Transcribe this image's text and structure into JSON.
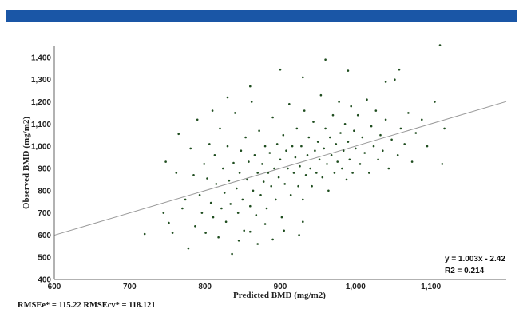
{
  "header_color": "#1a56a6",
  "chart_data": {
    "type": "scatter",
    "xlabel": "Predicted BMD (mg/m2)",
    "ylabel": "Observed BMD (mg/m2)",
    "xlim": [
      600,
      1200
    ],
    "ylim": [
      400,
      1450
    ],
    "x_ticks": [
      {
        "value": 600,
        "label": "600"
      },
      {
        "value": 700,
        "label": "700"
      },
      {
        "value": 800,
        "label": "800"
      },
      {
        "value": 900,
        "label": "900"
      },
      {
        "value": 1000,
        "label": "1,000"
      },
      {
        "value": 1100,
        "label": "1,100"
      }
    ],
    "y_ticks": [
      {
        "value": 400,
        "label": "400"
      },
      {
        "value": 500,
        "label": "500"
      },
      {
        "value": 600,
        "label": "600"
      },
      {
        "value": 700,
        "label": "700"
      },
      {
        "value": 800,
        "label": "800"
      },
      {
        "value": 900,
        "label": "900"
      },
      {
        "value": 1000,
        "label": "1,000"
      },
      {
        "value": 1100,
        "label": "1,100"
      },
      {
        "value": 1200,
        "label": "1,200"
      },
      {
        "value": 1300,
        "label": "1,300"
      },
      {
        "value": 1400,
        "label": "1,400"
      }
    ],
    "point_color": "#1f4d1f",
    "line_color": "#999999",
    "regression": {
      "slope": 1.003,
      "intercept": -2.42,
      "equation": "y = 1.003x - 2.42",
      "r2": "R2 = 0.214"
    },
    "points": [
      [
        720,
        605
      ],
      [
        745,
        700
      ],
      [
        748,
        930
      ],
      [
        752,
        655
      ],
      [
        757,
        610
      ],
      [
        762,
        880
      ],
      [
        765,
        1055
      ],
      [
        770,
        720
      ],
      [
        774,
        760
      ],
      [
        778,
        540
      ],
      [
        781,
        990
      ],
      [
        785,
        870
      ],
      [
        787,
        640
      ],
      [
        790,
        1120
      ],
      [
        793,
        780
      ],
      [
        796,
        700
      ],
      [
        799,
        920
      ],
      [
        801,
        610
      ],
      [
        803,
        855
      ],
      [
        806,
        1010
      ],
      [
        808,
        745
      ],
      [
        811,
        680
      ],
      [
        813,
        960
      ],
      [
        815,
        830
      ],
      [
        818,
        590
      ],
      [
        820,
        1080
      ],
      [
        822,
        720
      ],
      [
        824,
        900
      ],
      [
        826,
        790
      ],
      [
        828,
        660
      ],
      [
        830,
        1000
      ],
      [
        832,
        845
      ],
      [
        834,
        740
      ],
      [
        836,
        515
      ],
      [
        838,
        925
      ],
      [
        840,
        1150
      ],
      [
        842,
        810
      ],
      [
        844,
        700
      ],
      [
        846,
        880
      ],
      [
        848,
        980
      ],
      [
        850,
        760
      ],
      [
        852,
        620
      ],
      [
        854,
        1040
      ],
      [
        856,
        850
      ],
      [
        858,
        930
      ],
      [
        860,
        730
      ],
      [
        862,
        1200
      ],
      [
        864,
        800
      ],
      [
        866,
        960
      ],
      [
        868,
        690
      ],
      [
        870,
        880
      ],
      [
        872,
        1070
      ],
      [
        874,
        780
      ],
      [
        876,
        920
      ],
      [
        878,
        840
      ],
      [
        880,
        1000
      ],
      [
        882,
        720
      ],
      [
        884,
        880
      ],
      [
        886,
        970
      ],
      [
        888,
        820
      ],
      [
        890,
        1130
      ],
      [
        892,
        900
      ],
      [
        894,
        760
      ],
      [
        896,
        1010
      ],
      [
        898,
        860
      ],
      [
        900,
        940
      ],
      [
        902,
        680
      ],
      [
        904,
        1050
      ],
      [
        906,
        830
      ],
      [
        908,
        980
      ],
      [
        910,
        900
      ],
      [
        912,
        1190
      ],
      [
        914,
        780
      ],
      [
        916,
        1000
      ],
      [
        918,
        880
      ],
      [
        920,
        950
      ],
      [
        922,
        1080
      ],
      [
        924,
        820
      ],
      [
        926,
        910
      ],
      [
        928,
        1000
      ],
      [
        930,
        760
      ],
      [
        932,
        1160
      ],
      [
        934,
        870
      ],
      [
        936,
        960
      ],
      [
        938,
        1040
      ],
      [
        940,
        900
      ],
      [
        942,
        820
      ],
      [
        944,
        1110
      ],
      [
        946,
        980
      ],
      [
        948,
        880
      ],
      [
        950,
        1020
      ],
      [
        952,
        940
      ],
      [
        954,
        1230
      ],
      [
        956,
        860
      ],
      [
        958,
        990
      ],
      [
        960,
        1080
      ],
      [
        962,
        920
      ],
      [
        964,
        800
      ],
      [
        966,
        1040
      ],
      [
        968,
        960
      ],
      [
        970,
        1140
      ],
      [
        972,
        880
      ],
      [
        974,
        1010
      ],
      [
        976,
        930
      ],
      [
        978,
        1200
      ],
      [
        980,
        1060
      ],
      [
        982,
        900
      ],
      [
        984,
        980
      ],
      [
        986,
        1100
      ],
      [
        988,
        850
      ],
      [
        990,
        1020
      ],
      [
        992,
        940
      ],
      [
        994,
        1180
      ],
      [
        996,
        880
      ],
      [
        998,
        1070
      ],
      [
        1000,
        990
      ],
      [
        1003,
        1140
      ],
      [
        1006,
        920
      ],
      [
        1009,
        1040
      ],
      [
        1012,
        970
      ],
      [
        1015,
        1210
      ],
      [
        1018,
        880
      ],
      [
        1021,
        1090
      ],
      [
        1024,
        1000
      ],
      [
        1027,
        1160
      ],
      [
        1030,
        940
      ],
      [
        1033,
        1050
      ],
      [
        1036,
        980
      ],
      [
        1040,
        1120
      ],
      [
        1044,
        900
      ],
      [
        1048,
        1030
      ],
      [
        1052,
        1300
      ],
      [
        1056,
        960
      ],
      [
        1060,
        1080
      ],
      [
        1065,
        1010
      ],
      [
        1070,
        1150
      ],
      [
        1075,
        930
      ],
      [
        1080,
        1060
      ],
      [
        1088,
        1120
      ],
      [
        1095,
        1000
      ],
      [
        1105,
        1200
      ],
      [
        1115,
        920
      ],
      [
        1118,
        1080
      ],
      [
        1112,
        1455
      ],
      [
        1058,
        1345
      ],
      [
        1040,
        1290
      ],
      [
        990,
        1340
      ],
      [
        960,
        1390
      ],
      [
        930,
        1310
      ],
      [
        900,
        1345
      ],
      [
        860,
        1270
      ],
      [
        830,
        1220
      ],
      [
        810,
        1160
      ],
      [
        890,
        580
      ],
      [
        870,
        560
      ],
      [
        860,
        615
      ],
      [
        845,
        575
      ],
      [
        905,
        620
      ],
      [
        930,
        660
      ],
      [
        880,
        650
      ],
      [
        925,
        600
      ]
    ]
  },
  "annotations": {
    "equation": "y = 1.003x - 2.42",
    "r2": "R2 = 0.214"
  },
  "footnote": "RMSEe* = 115.22   RMSEcv* = 118.121"
}
